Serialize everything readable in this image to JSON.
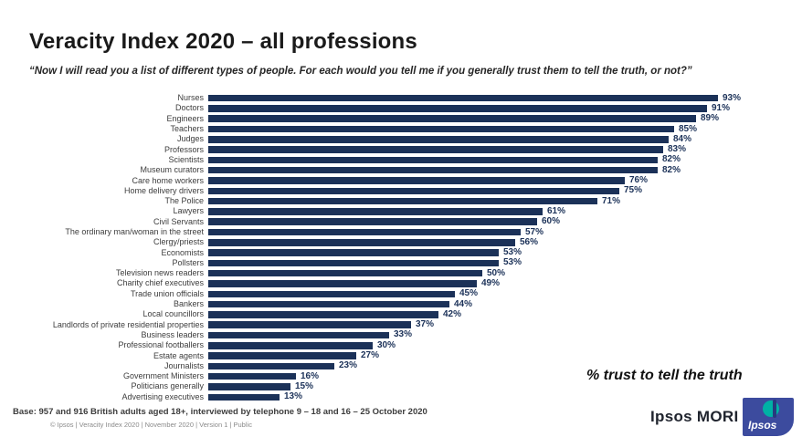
{
  "title": "Veracity Index 2020 – all professions",
  "subtitle": "“Now I will read you a list of different types of people. For each would you tell me if you generally trust them to tell the truth, or not?”",
  "annotation": "% trust to tell the truth",
  "footer": {
    "base": "Base: 957 and 916 British adults aged 18+, interviewed by telephone 9 – 18 and 16 – 25 October 2020",
    "copyright": "© Ipsos | Veracity Index 2020 | November 2020 | Version 1 | Public"
  },
  "branding": {
    "name": "Ipsos MORI",
    "logo_text": "Ipsos",
    "logo_bg_color": "#3c4b9e",
    "logo_circle_color": "#00b1a5"
  },
  "colors": {
    "bar": "#1b3158",
    "value_label": "#1b3158"
  },
  "chart_data": {
    "type": "bar",
    "orientation": "horizontal",
    "title": "Veracity Index 2020 – all professions",
    "xlabel": "% trust to tell the truth",
    "ylabel": "",
    "xlim": [
      0,
      100
    ],
    "value_suffix": "%",
    "grid": false,
    "legend": false,
    "categories": [
      "Nurses",
      "Doctors",
      "Engineers",
      "Teachers",
      "Judges",
      "Professors",
      "Scientists",
      "Museum curators",
      "Care home workers",
      "Home delivery drivers",
      "The Police",
      "Lawyers",
      "Civil Servants",
      "The ordinary man/woman in the street",
      "Clergy/priests",
      "Economists",
      "Pollsters",
      "Television news readers",
      "Charity chief executives",
      "Trade union officials",
      "Bankers",
      "Local councillors",
      "Landlords of private residential properties",
      "Business leaders",
      "Professional footballers",
      "Estate agents",
      "Journalists",
      "Government Ministers",
      "Politicians generally",
      "Advertising executives"
    ],
    "values": [
      93,
      91,
      89,
      85,
      84,
      83,
      82,
      82,
      76,
      75,
      71,
      61,
      60,
      57,
      56,
      53,
      53,
      50,
      49,
      45,
      44,
      42,
      37,
      33,
      30,
      27,
      23,
      16,
      15,
      13
    ]
  }
}
